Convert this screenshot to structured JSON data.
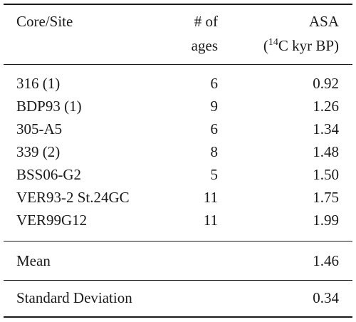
{
  "table": {
    "header": {
      "col1": "Core/Site",
      "col2_line1": "# of",
      "col2_line2": "ages",
      "col3_line1": "ASA",
      "col3_line2_open": "(",
      "col3_line2_sup": "14",
      "col3_line2_rest": "C kyr BP)"
    },
    "rows": [
      {
        "site": "316 (1)",
        "ages": "6",
        "asa": "0.92"
      },
      {
        "site": "BDP93 (1)",
        "ages": "9",
        "asa": "1.26"
      },
      {
        "site": "305-A5",
        "ages": "6",
        "asa": "1.34"
      },
      {
        "site": "339 (2)",
        "ages": "8",
        "asa": "1.48"
      },
      {
        "site": "BSS06-G2",
        "ages": "5",
        "asa": "1.50"
      },
      {
        "site": "VER93-2 St.24GC",
        "ages": "11",
        "asa": "1.75"
      },
      {
        "site": "VER99G12",
        "ages": "11",
        "asa": "1.99"
      }
    ],
    "mean": {
      "label": "Mean",
      "value": "1.46"
    },
    "std": {
      "label": "Standard Deviation",
      "value": "0.34"
    }
  }
}
